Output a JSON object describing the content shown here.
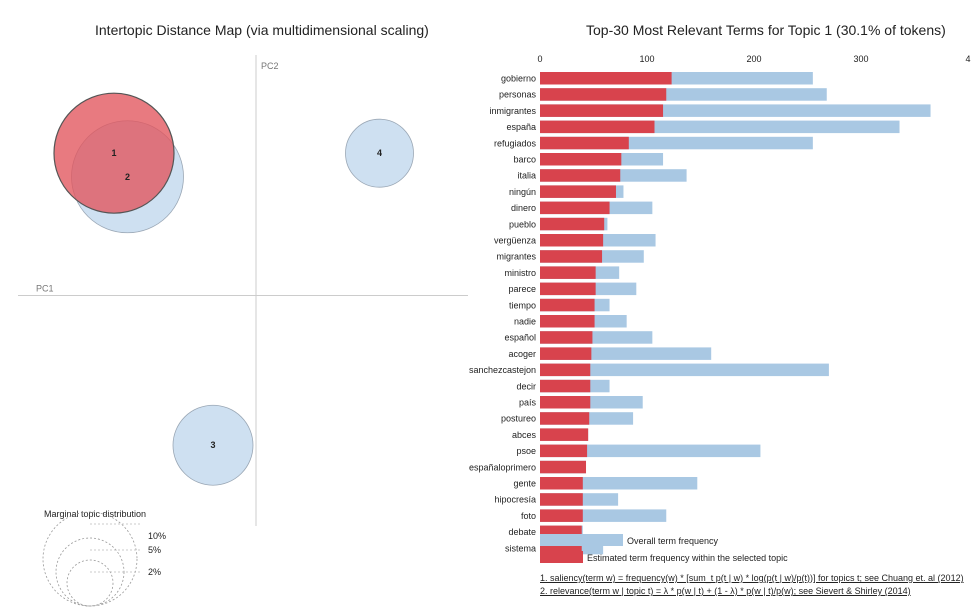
{
  "left_panel": {
    "title": "Intertopic Distance Map (via multidimensional scaling)",
    "pc1_label": "PC1",
    "pc2_label": "PC2",
    "marginal_title": "Marginal topic distribution",
    "marginal_labels": [
      "2%",
      "5%",
      "10%"
    ]
  },
  "right_panel": {
    "title": "Top-30 Most Relevant Terms for Topic 1 (30.1% of tokens)",
    "legend_overall": "Overall term frequency",
    "legend_topic": "Estimated term frequency within the selected topic",
    "note1": "1. saliency(term w) = frequency(w) * [sum_t p(t | w) * log(p(t | w)/p(t))] for topics t; see Chuang et. al (2012)",
    "note2": "2. relevance(term w | topic t) = λ * p(w | t) + (1 - λ) * p(w | t)/p(w); see Sievert & Shirley (2014)"
  },
  "colors": {
    "overall": "#a9c8e3",
    "topic": "#d8434d",
    "bubble": "#c6dbef",
    "bubble_selected": "#e2555c",
    "axis": "#cccccc"
  },
  "chart_data": [
    {
      "type": "scatter",
      "title": "Intertopic Distance Map (via multidimensional scaling)",
      "xlabel": "PC1",
      "ylabel": "PC2",
      "grid": false,
      "selected_topic": "1",
      "points": [
        {
          "label": "1",
          "x": -0.3,
          "y": 0.3,
          "size": 0.3
        },
        {
          "label": "2",
          "x": -0.27,
          "y": 0.25,
          "size": 0.28
        },
        {
          "label": "3",
          "x": -0.08,
          "y": -0.32,
          "size": 0.2
        },
        {
          "label": "4",
          "x": 0.29,
          "y": 0.3,
          "size": 0.17
        }
      ]
    },
    {
      "type": "bar",
      "orientation": "horizontal",
      "title": "Top-30 Most Relevant Terms for Topic 1 (30.1% of tokens)",
      "xlim": [
        0,
        400
      ],
      "xticks": [
        "0",
        "100",
        "200",
        "300",
        "4"
      ],
      "grid": false,
      "legend": "bottom",
      "categories": [
        "gobierno",
        "personas",
        "inmigrantes",
        "españa",
        "refugiados",
        "barco",
        "italia",
        "ningún",
        "dinero",
        "pueblo",
        "vergüenza",
        "migrantes",
        "ministro",
        "parece",
        "tiempo",
        "nadie",
        "español",
        "acoger",
        "sanchezcastejon",
        "decir",
        "país",
        "postureo",
        "abces",
        "psoe",
        "españaloprimero",
        "gente",
        "hipocresía",
        "foto",
        "debate",
        "sistema"
      ],
      "series": [
        {
          "name": "Overall term frequency",
          "values": [
            255,
            268,
            365,
            336,
            255,
            115,
            137,
            78,
            105,
            63,
            108,
            97,
            74,
            90,
            65,
            81,
            105,
            160,
            270,
            65,
            96,
            87,
            45,
            206,
            43,
            147,
            73,
            118,
            40,
            59
          ]
        },
        {
          "name": "Estimated term frequency within the selected topic",
          "values": [
            123,
            118,
            115,
            107,
            83,
            76,
            75,
            71,
            65,
            60,
            59,
            58,
            52,
            52,
            51,
            51,
            49,
            48,
            47,
            47,
            47,
            46,
            45,
            44,
            43,
            40,
            40,
            40,
            39,
            39
          ]
        }
      ]
    }
  ]
}
